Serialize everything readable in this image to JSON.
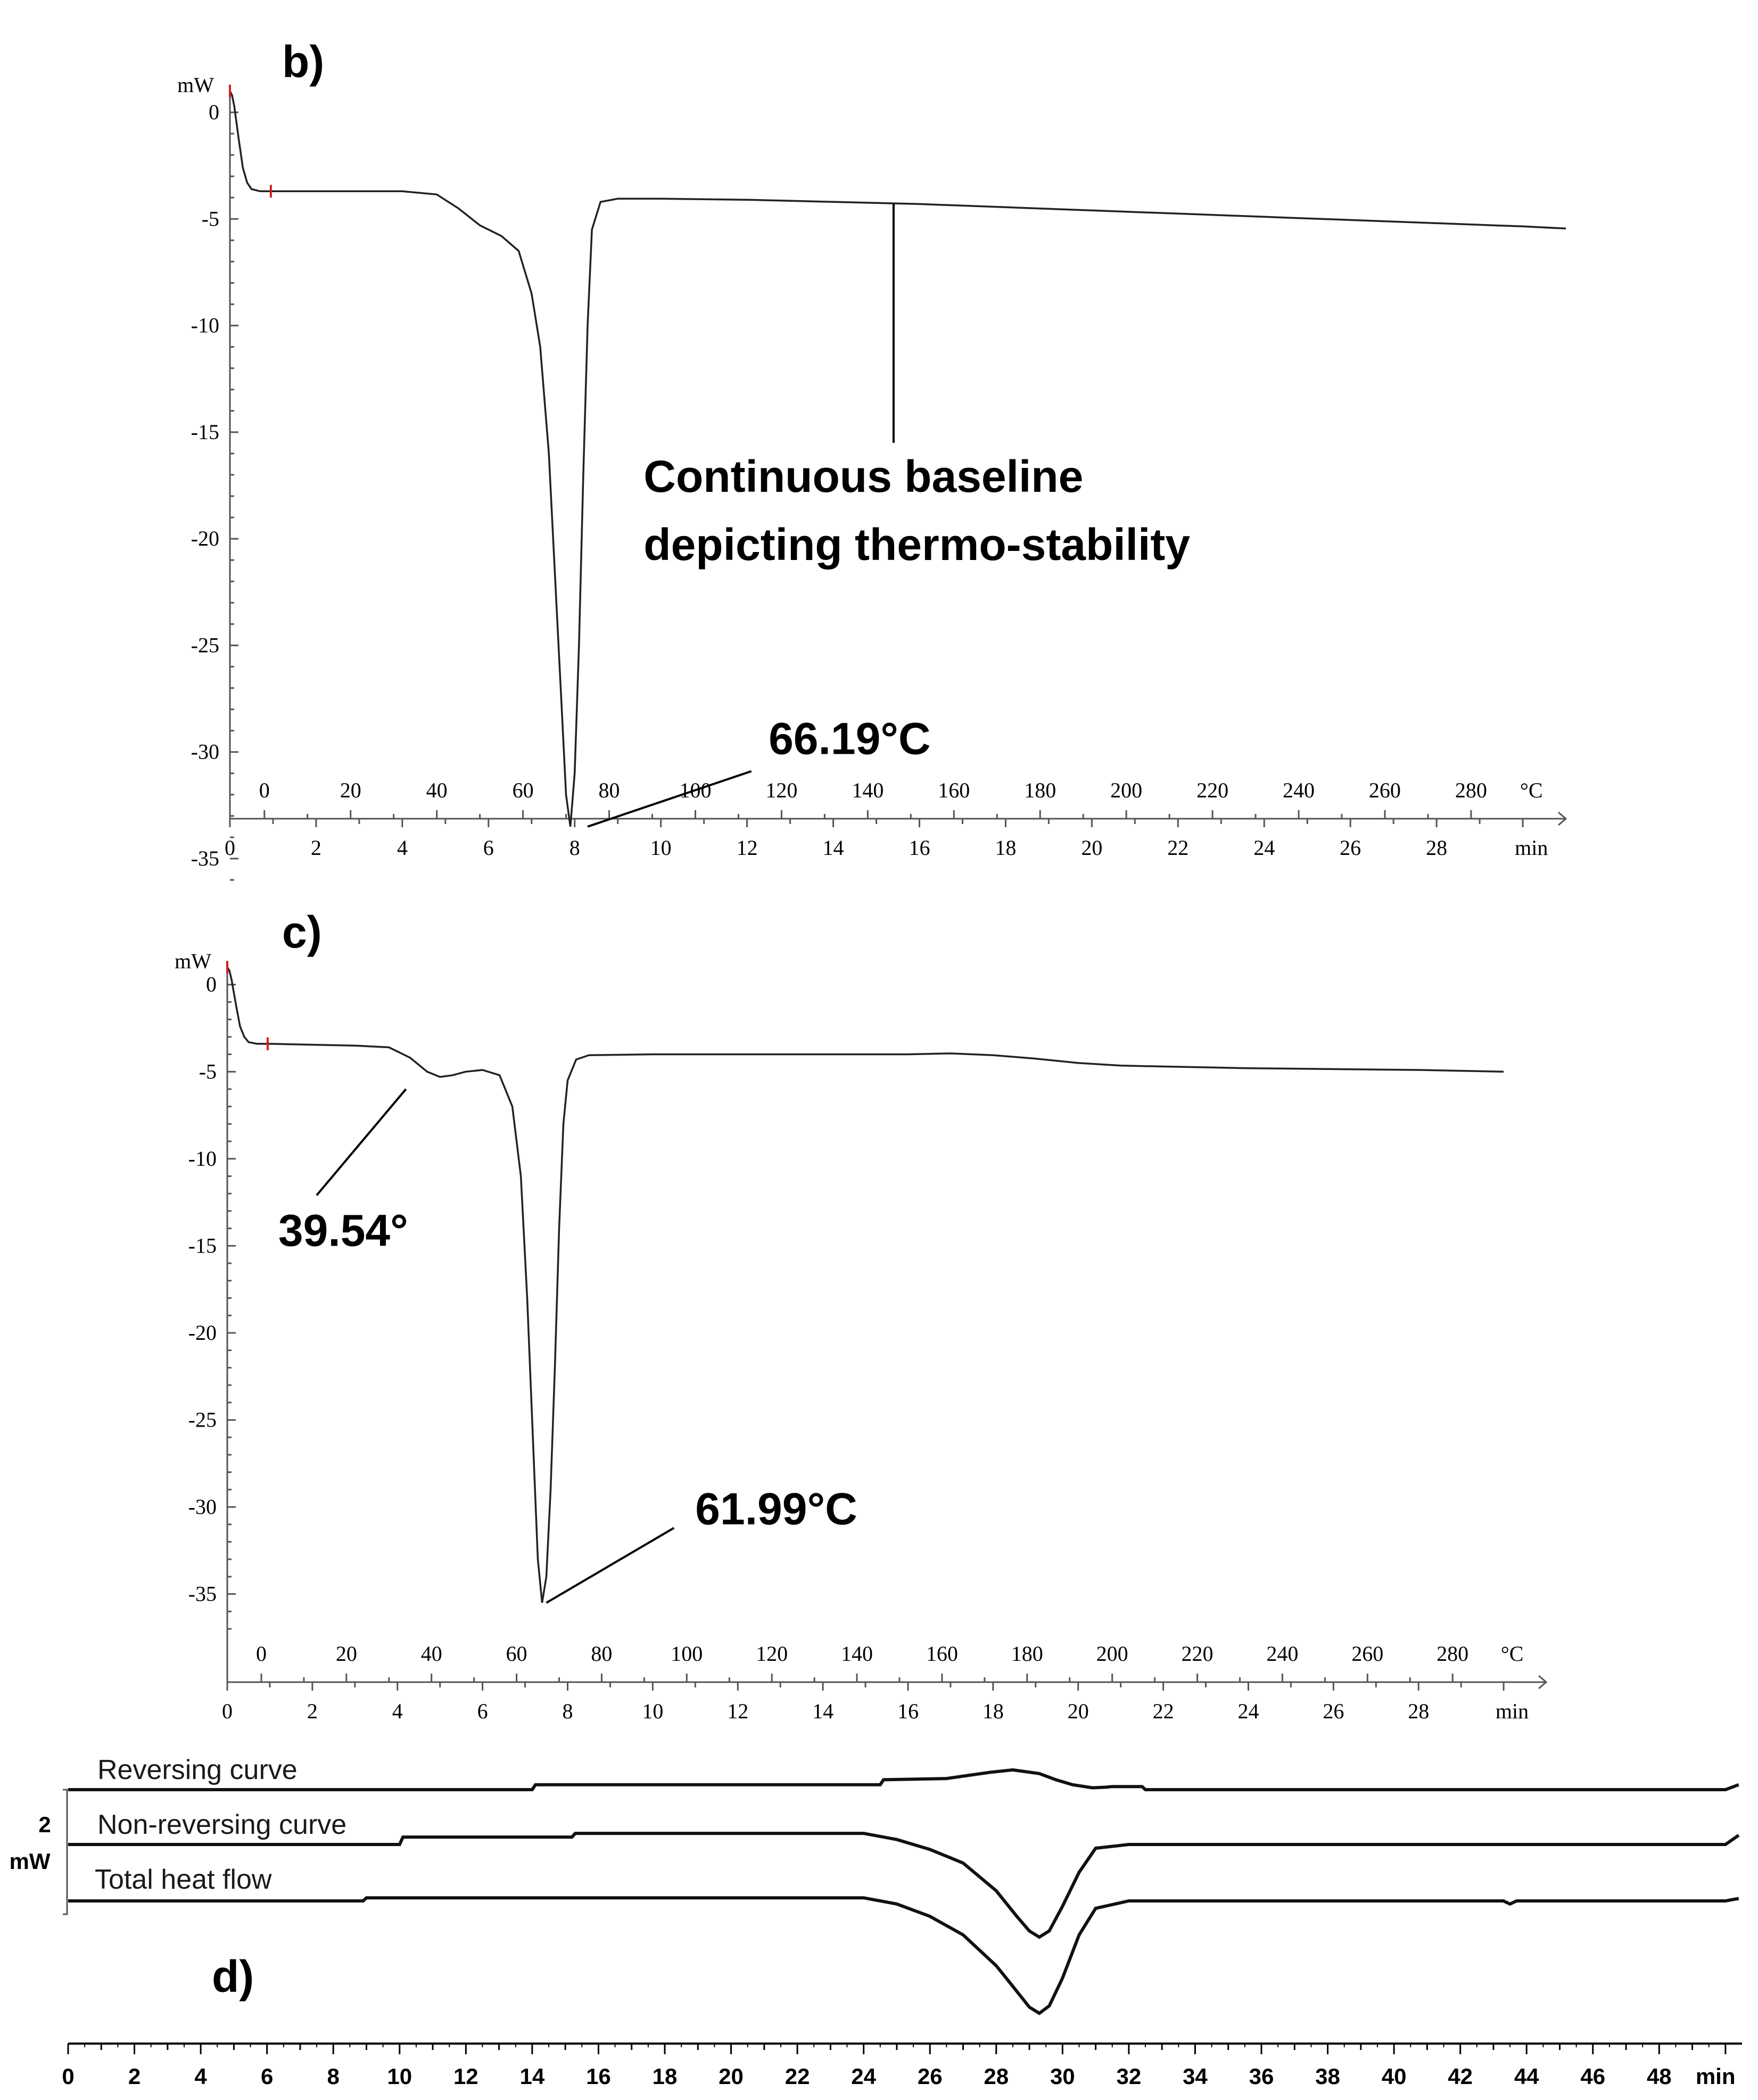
{
  "chart_data": [
    {
      "panel": "b)",
      "type": "line",
      "ylabel": "mW",
      "ylim": [
        -36,
        1
      ],
      "yticks": [
        "0",
        "-5",
        "-10",
        "-15",
        "-20",
        "-25",
        "-30",
        "-35"
      ],
      "ytick_values": [
        0,
        -5,
        -10,
        -15,
        -20,
        -25,
        -30,
        -35
      ],
      "temperature_unit": "°C",
      "time_unit": "min",
      "xlim_min": [
        0,
        31
      ],
      "time_ticks": [
        "0",
        "2",
        "4",
        "6",
        "8",
        "10",
        "12",
        "14",
        "16",
        "18",
        "20",
        "22",
        "24",
        "26",
        "28"
      ],
      "time_tick_values": [
        0,
        2,
        4,
        6,
        8,
        10,
        12,
        14,
        16,
        18,
        20,
        22,
        24,
        26,
        28
      ],
      "temp_ticks": [
        "0",
        "20",
        "40",
        "60",
        "80",
        "100",
        "120",
        "140",
        "160",
        "180",
        "200",
        "220",
        "240",
        "260",
        "280"
      ],
      "temp_tick_values": [
        0,
        20,
        40,
        60,
        80,
        100,
        120,
        140,
        160,
        180,
        200,
        220,
        240,
        260,
        280
      ],
      "series": [
        {
          "x": [
            0,
            0.05,
            0.1,
            0.2,
            0.3,
            0.4,
            0.5,
            0.7,
            1.0,
            2.0,
            3.0,
            4.0,
            4.8,
            5.3,
            5.8,
            6.3,
            6.7,
            7.0,
            7.2,
            7.4,
            7.55,
            7.7,
            7.8,
            7.9,
            8.0,
            8.1,
            8.2,
            8.3,
            8.4,
            8.6,
            9.0,
            10,
            12,
            14,
            16,
            18,
            20,
            22,
            24,
            26,
            28,
            30,
            31
          ],
          "y": [
            1.0,
            0.8,
            0.3,
            -1.2,
            -2.6,
            -3.3,
            -3.6,
            -3.7,
            -3.7,
            -3.7,
            -3.7,
            -3.7,
            -3.85,
            -4.5,
            -5.3,
            -5.8,
            -6.5,
            -8.5,
            -11,
            -16,
            -22,
            -28,
            -32,
            -33.5,
            -31,
            -25,
            -17,
            -10,
            -5.5,
            -4.2,
            -4.05,
            -4.05,
            -4.1,
            -4.2,
            -4.3,
            -4.45,
            -4.6,
            -4.75,
            -4.9,
            -5.05,
            -5.2,
            -5.35,
            -5.45
          ]
        }
      ],
      "annotations": [
        {
          "text": "66.19°C",
          "x": 7.9,
          "y": -33.5
        },
        {
          "text": "Continuous baseline",
          "x": 15.4,
          "y": -4.2
        },
        {
          "text": "depicting thermo-stability",
          "x": 15.4,
          "y": -4.2
        }
      ]
    },
    {
      "panel": "c)",
      "type": "line",
      "ylabel": "mW",
      "ylim": [
        -37,
        1
      ],
      "yticks": [
        "0",
        "-5",
        "-10",
        "-15",
        "-20",
        "-25",
        "-30",
        "-35"
      ],
      "ytick_values": [
        0,
        -5,
        -10,
        -15,
        -20,
        -25,
        -30,
        -35
      ],
      "temperature_unit": "°C",
      "time_unit": "min",
      "xlim_min": [
        0,
        31
      ],
      "time_ticks": [
        "0",
        "2",
        "4",
        "6",
        "8",
        "10",
        "12",
        "14",
        "16",
        "18",
        "20",
        "22",
        "24",
        "26",
        "28"
      ],
      "time_tick_values": [
        0,
        2,
        4,
        6,
        8,
        10,
        12,
        14,
        16,
        18,
        20,
        22,
        24,
        26,
        28
      ],
      "temp_ticks": [
        "0",
        "20",
        "40",
        "60",
        "80",
        "100",
        "120",
        "140",
        "160",
        "180",
        "200",
        "220",
        "240",
        "260",
        "280"
      ],
      "temp_tick_values": [
        0,
        20,
        40,
        60,
        80,
        100,
        120,
        140,
        160,
        180,
        200,
        220,
        240,
        260,
        280
      ],
      "series": [
        {
          "x": [
            0,
            0.05,
            0.1,
            0.2,
            0.3,
            0.4,
            0.5,
            0.7,
            1.0,
            2.0,
            3.0,
            3.8,
            4.3,
            4.7,
            5.0,
            5.3,
            5.6,
            6.0,
            6.4,
            6.7,
            6.9,
            7.05,
            7.2,
            7.3,
            7.4,
            7.5,
            7.6,
            7.7,
            7.8,
            7.9,
            8.0,
            8.2,
            8.5,
            10,
            12,
            14,
            16,
            17,
            18,
            19,
            20,
            21,
            22,
            24,
            26,
            28,
            30
          ],
          "y": [
            1.0,
            0.8,
            0.3,
            -1.1,
            -2.4,
            -3.0,
            -3.3,
            -3.4,
            -3.4,
            -3.45,
            -3.5,
            -3.6,
            -4.2,
            -5.0,
            -5.3,
            -5.2,
            -5.0,
            -4.9,
            -5.2,
            -7.0,
            -11,
            -18,
            -27,
            -33,
            -35.5,
            -34,
            -29,
            -22,
            -14,
            -8,
            -5.5,
            -4.3,
            -4.05,
            -4.0,
            -4.0,
            -4.0,
            -4.0,
            -3.95,
            -4.05,
            -4.25,
            -4.5,
            -4.65,
            -4.7,
            -4.8,
            -4.85,
            -4.9,
            -5.0
          ]
        }
      ],
      "annotations": [
        {
          "text": "39.54°",
          "x": 4.3,
          "y": -6.0
        },
        {
          "text": "61.99°C",
          "x": 7.35,
          "y": -35.5
        }
      ]
    },
    {
      "panel": "d)",
      "type": "line",
      "scale_value": "2",
      "scale_unit": "mW",
      "time_unit": "min",
      "xlim": [
        0,
        50.5
      ],
      "x_ticks": [
        "0",
        "2",
        "4",
        "6",
        "8",
        "10",
        "12",
        "14",
        "16",
        "18",
        "20",
        "22",
        "24",
        "26",
        "28",
        "30",
        "32",
        "34",
        "36",
        "38",
        "40",
        "42",
        "44",
        "46",
        "48"
      ],
      "x_tick_values": [
        0,
        2,
        4,
        6,
        8,
        10,
        12,
        14,
        16,
        18,
        20,
        22,
        24,
        26,
        28,
        30,
        32,
        34,
        36,
        38,
        40,
        42,
        44,
        46,
        48
      ],
      "series": [
        {
          "name": "Reversing curve",
          "x": [
            0,
            14.0,
            14.1,
            24.5,
            24.6,
            26.5,
            27.8,
            28.5,
            29.3,
            29.8,
            30.3,
            30.9,
            31.3,
            31.5,
            32.4,
            32.5,
            50.0,
            50.4
          ],
          "y": [
            0,
            0,
            0.08,
            0.08,
            0.16,
            0.18,
            0.28,
            0.32,
            0.26,
            0.16,
            0.08,
            0.03,
            0.04,
            0.05,
            0.05,
            0,
            0,
            0.08
          ]
        },
        {
          "name": "Non-reversing curve",
          "x": [
            0,
            10.0,
            10.1,
            15.2,
            15.3,
            24.0,
            25.0,
            26.0,
            27.0,
            28.0,
            28.6,
            29.0,
            29.3,
            29.6,
            30.0,
            30.5,
            31.0,
            32.0,
            35.0,
            50.0,
            50.4
          ],
          "y": [
            0,
            0,
            0.12,
            0.12,
            0.18,
            0.18,
            0.08,
            -0.08,
            -0.3,
            -0.75,
            -1.15,
            -1.4,
            -1.5,
            -1.4,
            -1.0,
            -0.45,
            -0.06,
            0.0,
            0.0,
            0.0,
            0.15
          ]
        },
        {
          "name": "Total heat flow",
          "x": [
            0,
            8.9,
            9.0,
            24.0,
            25.0,
            26.0,
            27.0,
            28.0,
            28.6,
            29.0,
            29.3,
            29.6,
            30.0,
            30.5,
            31.0,
            32.0,
            35.0,
            43.3,
            43.5,
            43.7,
            50.0,
            50.4
          ],
          "y": [
            0,
            0,
            0.05,
            0.05,
            -0.05,
            -0.25,
            -0.55,
            -1.05,
            -1.45,
            -1.72,
            -1.82,
            -1.7,
            -1.25,
            -0.55,
            -0.12,
            0.0,
            0.0,
            0.0,
            -0.05,
            0.0,
            0.0,
            0.04
          ]
        }
      ]
    }
  ]
}
